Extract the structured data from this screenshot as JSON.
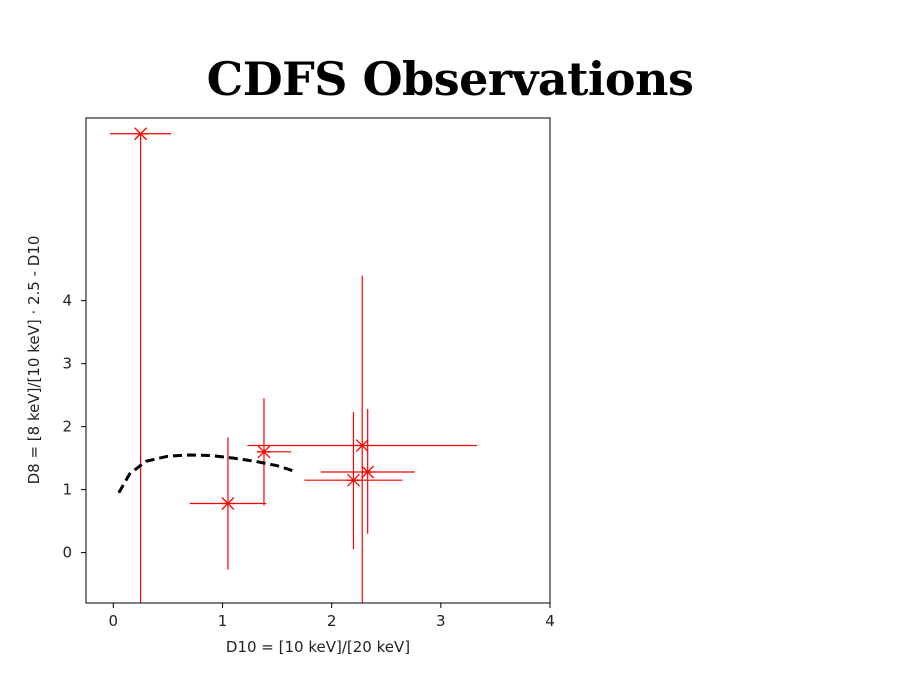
{
  "title": "CDFS Observations",
  "chart_data": {
    "type": "scatter",
    "xlabel": "D10 = [10 keV]/[20 keV]",
    "ylabel": "D8 = [8 keV]/[10 keV] · 2.5 - D10",
    "xlim": [
      -0.25,
      4.0
    ],
    "ylim": [
      -0.8,
      6.9
    ],
    "x_ticks": [
      0,
      1,
      2,
      3,
      4
    ],
    "y_ticks": [
      0,
      1,
      2,
      3,
      4
    ],
    "grid": false,
    "points_color": "#ff0000",
    "curve_color": "#000000",
    "series": [
      {
        "kind": "errorbar",
        "marker": "x",
        "points": [
          {
            "x": 0.25,
            "y": 6.65,
            "xerr": [
              0.28,
              0.28
            ],
            "yerr": [
              7.5,
              0.0
            ]
          },
          {
            "x": 1.05,
            "y": 0.78,
            "xerr": [
              0.35,
              0.35
            ],
            "yerr": [
              1.05,
              1.05
            ]
          },
          {
            "x": 1.38,
            "y": 1.6,
            "xerr": [
              0.0,
              0.25
            ],
            "yerr": [
              0.85,
              0.85
            ]
          },
          {
            "x": 2.28,
            "y": 1.7,
            "xerr": [
              1.05,
              1.05
            ],
            "yerr": [
              2.5,
              2.7
            ]
          },
          {
            "x": 2.2,
            "y": 1.15,
            "xerr": [
              0.45,
              0.45
            ],
            "yerr": [
              1.1,
              1.08
            ]
          },
          {
            "x": 2.33,
            "y": 1.28,
            "xerr": [
              0.43,
              0.43
            ],
            "yerr": [
              0.98,
              1.0
            ]
          }
        ]
      },
      {
        "kind": "curve",
        "style": "dashed",
        "x": [
          0.05,
          0.15,
          0.3,
          0.5,
          0.7,
          0.9,
          1.1,
          1.3,
          1.5,
          1.68
        ],
        "y": [
          0.95,
          1.25,
          1.45,
          1.53,
          1.55,
          1.54,
          1.5,
          1.45,
          1.38,
          1.28
        ]
      }
    ]
  }
}
